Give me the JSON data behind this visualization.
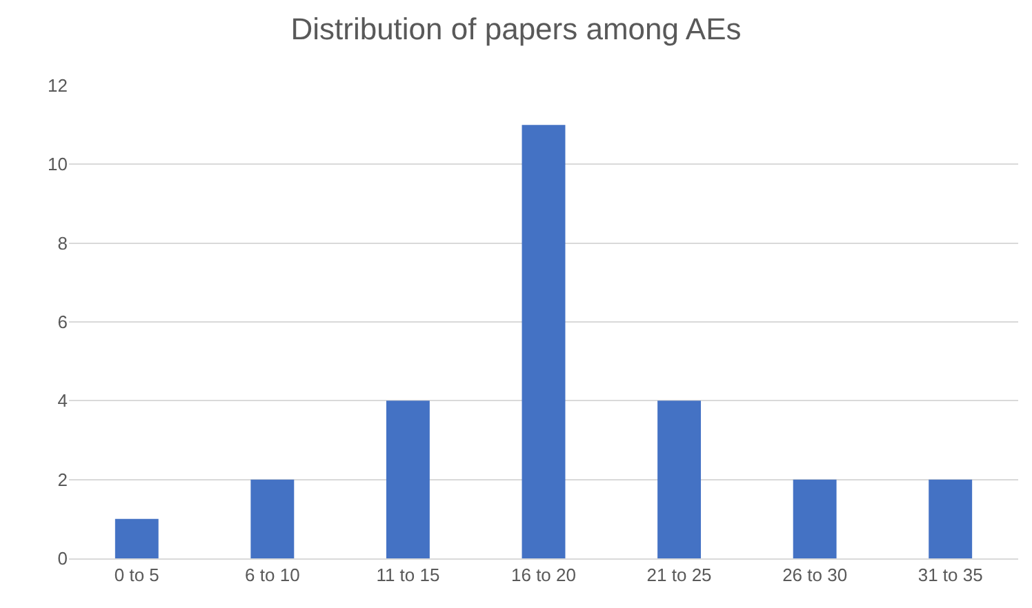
{
  "chart_data": {
    "type": "bar",
    "title": "Distribution of papers among AEs",
    "categories": [
      "0 to 5",
      "6 to 10",
      "11 to 15",
      "16 to 20",
      "21 to 25",
      "26 to 30",
      "31 to 35"
    ],
    "values": [
      1,
      2,
      4,
      11,
      4,
      2,
      2
    ],
    "color": "#4472c4",
    "ylim": [
      0,
      12
    ],
    "yticks": [
      0,
      2,
      4,
      6,
      8,
      10,
      12
    ],
    "grid": "y"
  }
}
